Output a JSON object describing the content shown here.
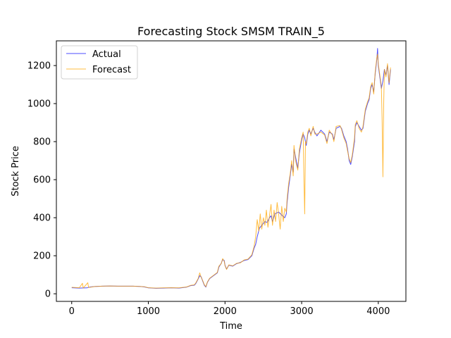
{
  "chart_data": {
    "type": "line",
    "title": "Forecasting Stock SMSM TRAIN_5",
    "xlabel": "Time",
    "ylabel": "Stock Price",
    "xlim": [
      -200,
      4360
    ],
    "ylim": [
      -40,
      1330
    ],
    "xticks": [
      0,
      1000,
      2000,
      3000,
      4000
    ],
    "yticks": [
      0,
      200,
      400,
      600,
      800,
      1000,
      1200
    ],
    "grid": false,
    "legend_position": "top-left",
    "series": [
      {
        "name": "Actual",
        "color": "#0000ff",
        "points": [
          [
            0,
            32
          ],
          [
            100,
            30
          ],
          [
            200,
            31
          ],
          [
            230,
            35
          ],
          [
            300,
            38
          ],
          [
            400,
            40
          ],
          [
            500,
            41
          ],
          [
            600,
            40
          ],
          [
            700,
            40
          ],
          [
            800,
            40
          ],
          [
            900,
            38
          ],
          [
            950,
            36
          ],
          [
            1000,
            31
          ],
          [
            1100,
            29
          ],
          [
            1200,
            30
          ],
          [
            1300,
            31
          ],
          [
            1400,
            30
          ],
          [
            1500,
            35
          ],
          [
            1550,
            43
          ],
          [
            1600,
            45
          ],
          [
            1620,
            55
          ],
          [
            1650,
            78
          ],
          [
            1670,
            95
          ],
          [
            1690,
            88
          ],
          [
            1710,
            65
          ],
          [
            1730,
            45
          ],
          [
            1750,
            35
          ],
          [
            1770,
            60
          ],
          [
            1800,
            80
          ],
          [
            1850,
            95
          ],
          [
            1900,
            110
          ],
          [
            1920,
            140
          ],
          [
            1950,
            160
          ],
          [
            1970,
            180
          ],
          [
            1990,
            175
          ],
          [
            2000,
            150
          ],
          [
            2020,
            130
          ],
          [
            2050,
            150
          ],
          [
            2100,
            145
          ],
          [
            2150,
            158
          ],
          [
            2200,
            165
          ],
          [
            2250,
            175
          ],
          [
            2300,
            180
          ],
          [
            2350,
            200
          ],
          [
            2380,
            240
          ],
          [
            2400,
            260
          ],
          [
            2420,
            300
          ],
          [
            2450,
            345
          ],
          [
            2480,
            360
          ],
          [
            2500,
            370
          ],
          [
            2520,
            380
          ],
          [
            2550,
            375
          ],
          [
            2580,
            400
          ],
          [
            2600,
            410
          ],
          [
            2620,
            380
          ],
          [
            2650,
            420
          ],
          [
            2700,
            430
          ],
          [
            2750,
            410
          ],
          [
            2780,
            400
          ],
          [
            2800,
            420
          ],
          [
            2810,
            480
          ],
          [
            2830,
            560
          ],
          [
            2850,
            620
          ],
          [
            2870,
            680
          ],
          [
            2890,
            640
          ],
          [
            2900,
            760
          ],
          [
            2920,
            720
          ],
          [
            2950,
            660
          ],
          [
            2970,
            740
          ],
          [
            3000,
            810
          ],
          [
            3020,
            840
          ],
          [
            3040,
            820
          ],
          [
            3060,
            780
          ],
          [
            3080,
            840
          ],
          [
            3100,
            860
          ],
          [
            3120,
            840
          ],
          [
            3150,
            870
          ],
          [
            3170,
            850
          ],
          [
            3200,
            830
          ],
          [
            3250,
            860
          ],
          [
            3300,
            840
          ],
          [
            3330,
            800
          ],
          [
            3360,
            850
          ],
          [
            3400,
            840
          ],
          [
            3420,
            810
          ],
          [
            3450,
            870
          ],
          [
            3500,
            880
          ],
          [
            3520,
            870
          ],
          [
            3550,
            830
          ],
          [
            3580,
            800
          ],
          [
            3600,
            760
          ],
          [
            3620,
            700
          ],
          [
            3640,
            680
          ],
          [
            3660,
            720
          ],
          [
            3690,
            800
          ],
          [
            3700,
            880
          ],
          [
            3720,
            900
          ],
          [
            3750,
            880
          ],
          [
            3780,
            860
          ],
          [
            3800,
            870
          ],
          [
            3830,
            960
          ],
          [
            3860,
            1000
          ],
          [
            3880,
            1020
          ],
          [
            3900,
            1080
          ],
          [
            3920,
            1100
          ],
          [
            3940,
            1060
          ],
          [
            3960,
            1160
          ],
          [
            3980,
            1230
          ],
          [
            3990,
            1290
          ],
          [
            4000,
            1200
          ],
          [
            4020,
            1140
          ],
          [
            4040,
            1080
          ],
          [
            4060,
            1120
          ],
          [
            4080,
            1180
          ],
          [
            4100,
            1150
          ],
          [
            4120,
            1200
          ],
          [
            4140,
            1100
          ],
          [
            4160,
            1180
          ]
        ]
      },
      {
        "name": "Forecast",
        "color": "#ffa500",
        "points": [
          [
            0,
            34
          ],
          [
            100,
            32
          ],
          [
            140,
            55
          ],
          [
            150,
            30
          ],
          [
            210,
            58
          ],
          [
            220,
            33
          ],
          [
            300,
            38
          ],
          [
            400,
            40
          ],
          [
            500,
            41
          ],
          [
            600,
            40
          ],
          [
            700,
            40
          ],
          [
            800,
            40
          ],
          [
            900,
            38
          ],
          [
            950,
            37
          ],
          [
            1000,
            32
          ],
          [
            1100,
            30
          ],
          [
            1200,
            31
          ],
          [
            1300,
            32
          ],
          [
            1400,
            31
          ],
          [
            1500,
            36
          ],
          [
            1550,
            44
          ],
          [
            1600,
            47
          ],
          [
            1620,
            58
          ],
          [
            1650,
            80
          ],
          [
            1670,
            110
          ],
          [
            1690,
            85
          ],
          [
            1710,
            68
          ],
          [
            1730,
            48
          ],
          [
            1750,
            37
          ],
          [
            1770,
            62
          ],
          [
            1800,
            82
          ],
          [
            1850,
            97
          ],
          [
            1900,
            112
          ],
          [
            1920,
            145
          ],
          [
            1950,
            158
          ],
          [
            1970,
            185
          ],
          [
            1990,
            170
          ],
          [
            2000,
            148
          ],
          [
            2020,
            128
          ],
          [
            2050,
            152
          ],
          [
            2100,
            147
          ],
          [
            2150,
            160
          ],
          [
            2200,
            163
          ],
          [
            2250,
            178
          ],
          [
            2300,
            182
          ],
          [
            2350,
            205
          ],
          [
            2380,
            250
          ],
          [
            2400,
            300
          ],
          [
            2420,
            390
          ],
          [
            2440,
            330
          ],
          [
            2460,
            420
          ],
          [
            2480,
            340
          ],
          [
            2500,
            400
          ],
          [
            2520,
            360
          ],
          [
            2540,
            440
          ],
          [
            2560,
            350
          ],
          [
            2580,
            410
          ],
          [
            2600,
            470
          ],
          [
            2620,
            360
          ],
          [
            2640,
            440
          ],
          [
            2660,
            380
          ],
          [
            2680,
            480
          ],
          [
            2700,
            420
          ],
          [
            2720,
            340
          ],
          [
            2740,
            460
          ],
          [
            2760,
            380
          ],
          [
            2780,
            450
          ],
          [
            2800,
            430
          ],
          [
            2810,
            500
          ],
          [
            2830,
            580
          ],
          [
            2850,
            630
          ],
          [
            2870,
            700
          ],
          [
            2890,
            620
          ],
          [
            2900,
            780
          ],
          [
            2920,
            700
          ],
          [
            2950,
            650
          ],
          [
            2970,
            760
          ],
          [
            3000,
            820
          ],
          [
            3020,
            850
          ],
          [
            3030,
            600
          ],
          [
            3040,
            420
          ],
          [
            3050,
            800
          ],
          [
            3060,
            790
          ],
          [
            3080,
            850
          ],
          [
            3100,
            870
          ],
          [
            3120,
            830
          ],
          [
            3150,
            880
          ],
          [
            3170,
            840
          ],
          [
            3200,
            840
          ],
          [
            3250,
            850
          ],
          [
            3300,
            835
          ],
          [
            3330,
            790
          ],
          [
            3360,
            860
          ],
          [
            3400,
            835
          ],
          [
            3420,
            800
          ],
          [
            3450,
            880
          ],
          [
            3500,
            885
          ],
          [
            3520,
            865
          ],
          [
            3550,
            820
          ],
          [
            3580,
            790
          ],
          [
            3600,
            750
          ],
          [
            3620,
            710
          ],
          [
            3640,
            690
          ],
          [
            3660,
            730
          ],
          [
            3690,
            820
          ],
          [
            3700,
            890
          ],
          [
            3720,
            910
          ],
          [
            3750,
            870
          ],
          [
            3780,
            850
          ],
          [
            3800,
            880
          ],
          [
            3830,
            970
          ],
          [
            3860,
            1010
          ],
          [
            3880,
            1030
          ],
          [
            3900,
            1090
          ],
          [
            3920,
            1110
          ],
          [
            3940,
            1050
          ],
          [
            3960,
            1170
          ],
          [
            3980,
            1240
          ],
          [
            3990,
            1260
          ],
          [
            4000,
            1210
          ],
          [
            4020,
            1150
          ],
          [
            4040,
            1090
          ],
          [
            4050,
            900
          ],
          [
            4060,
            615
          ],
          [
            4070,
            1000
          ],
          [
            4080,
            1180
          ],
          [
            4100,
            1140
          ],
          [
            4120,
            1210
          ],
          [
            4140,
            1110
          ],
          [
            4160,
            1190
          ]
        ]
      }
    ]
  }
}
